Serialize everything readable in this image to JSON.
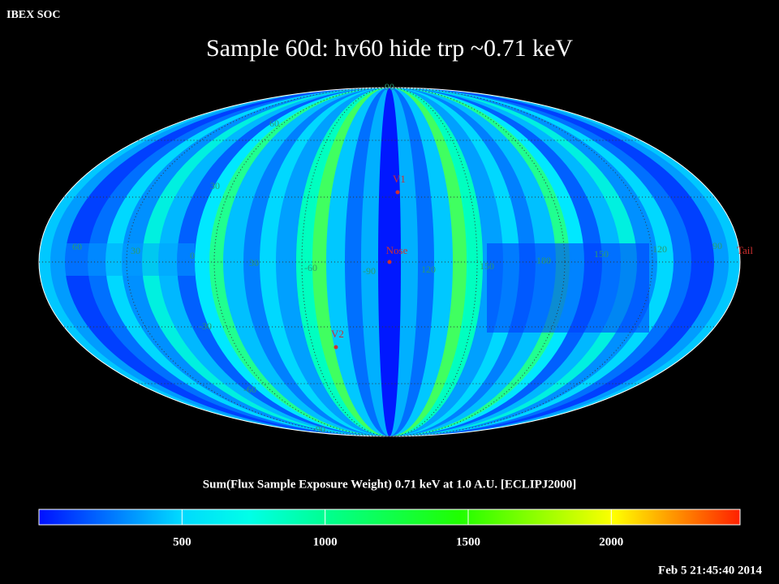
{
  "header": {
    "source": "IBEX SOC",
    "title": "Sample 60d: hv60 hide trp ~0.71 keV",
    "timestamp": "Feb  5 21:45:40 2014"
  },
  "map": {
    "grid_labels": [
      "90",
      "60",
      "30",
      "60",
      "30",
      "0",
      "30",
      "-60",
      "-90",
      "120",
      "150",
      "180",
      "150",
      "120",
      "90",
      "-30",
      "-60",
      "-90"
    ],
    "markers": [
      "V1",
      "Nose",
      "V2",
      "Tail"
    ]
  },
  "colorbar": {
    "title": "Sum(Flux Sample Exposure Weight)  0.71 keV at 1.0 A.U. [ECLIPJ2000]",
    "range": [
      0,
      2450
    ],
    "ticks": [
      500,
      1000,
      1500,
      2000
    ]
  }
}
